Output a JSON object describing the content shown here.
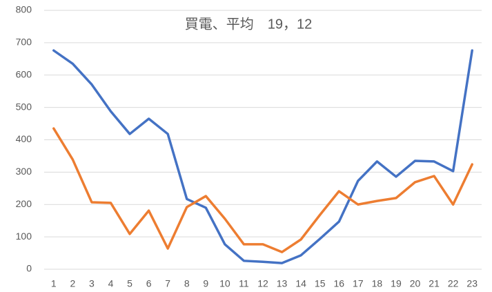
{
  "chart_data": {
    "type": "line",
    "title": "買電、平均　19，12",
    "categories": [
      1,
      2,
      3,
      4,
      5,
      6,
      7,
      8,
      9,
      10,
      11,
      12,
      13,
      14,
      15,
      16,
      17,
      18,
      19,
      20,
      21,
      22,
      23
    ],
    "series": [
      {
        "color": "#4472c4",
        "values": [
          676,
          635,
          571,
          488,
          418,
          465,
          418,
          217,
          190,
          77,
          26,
          23,
          19,
          43,
          94,
          147,
          273,
          333,
          286,
          335,
          333,
          303,
          676
        ]
      },
      {
        "color": "#ed7d31",
        "values": [
          435,
          339,
          207,
          205,
          109,
          181,
          64,
          192,
          226,
          156,
          77,
          77,
          53,
          92,
          168,
          241,
          200,
          211,
          220,
          269,
          288,
          200,
          324
        ]
      }
    ],
    "ylim": [
      0,
      800
    ],
    "yticks": [
      0,
      100,
      200,
      300,
      400,
      500,
      600,
      700,
      800
    ],
    "grid": true
  }
}
